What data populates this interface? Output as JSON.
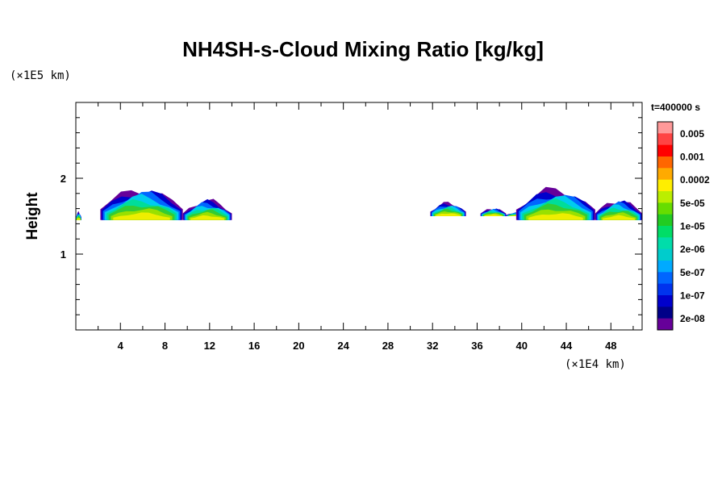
{
  "chart_data": {
    "type": "heatmap",
    "title": "NH4SH-s-Cloud Mixing Ratio [kg/kg]",
    "ylabel": "Height",
    "y_unit": "(×1E5 km)",
    "x_unit": "(×1E4 km)",
    "time_label": "t=400000 s",
    "xlim": [
      0,
      50.8
    ],
    "ylim": [
      0,
      3.0
    ],
    "x_ticks": [
      "4",
      "8",
      "12",
      "16",
      "20",
      "24",
      "28",
      "32",
      "36",
      "40",
      "44",
      "48"
    ],
    "x_tick_values": [
      4,
      8,
      12,
      16,
      20,
      24,
      28,
      32,
      36,
      40,
      44,
      48
    ],
    "y_ticks": [
      "1",
      "2"
    ],
    "y_tick_values": [
      1,
      2
    ],
    "colorbar": {
      "labels": [
        "0.005",
        "0.001",
        "0.0002",
        "5e-05",
        "1e-05",
        "2e-06",
        "5e-07",
        "1e-07",
        "2e-08"
      ],
      "colors_top_to_bottom": [
        "#ff9999",
        "#ff4444",
        "#ff0000",
        "#ff6600",
        "#ffaa00",
        "#ffee00",
        "#bbee00",
        "#66dd00",
        "#22cc22",
        "#00dd66",
        "#00ddaa",
        "#00cccc",
        "#00aaff",
        "#0066ff",
        "#0033ee",
        "#0000cc",
        "#000088",
        "#660099"
      ]
    },
    "cloud_regions": [
      {
        "x_start": 0.0,
        "x_end": 0.5,
        "y_bottom": 1.45,
        "y_top": 1.55
      },
      {
        "x_start": 2.2,
        "x_end": 9.6,
        "y_bottom": 1.45,
        "y_top": 1.85
      },
      {
        "x_start": 9.6,
        "x_end": 14.0,
        "y_bottom": 1.45,
        "y_top": 1.7
      },
      {
        "x_start": 31.8,
        "x_end": 35.0,
        "y_bottom": 1.5,
        "y_top": 1.67
      },
      {
        "x_start": 36.3,
        "x_end": 38.6,
        "y_bottom": 1.5,
        "y_top": 1.6
      },
      {
        "x_start": 38.6,
        "x_end": 40.7,
        "y_bottom": 1.5,
        "y_top": 1.55
      },
      {
        "x_start": 39.5,
        "x_end": 46.6,
        "y_bottom": 1.45,
        "y_top": 1.84
      },
      {
        "x_start": 46.6,
        "x_end": 50.8,
        "y_bottom": 1.45,
        "y_top": 1.7
      }
    ]
  }
}
